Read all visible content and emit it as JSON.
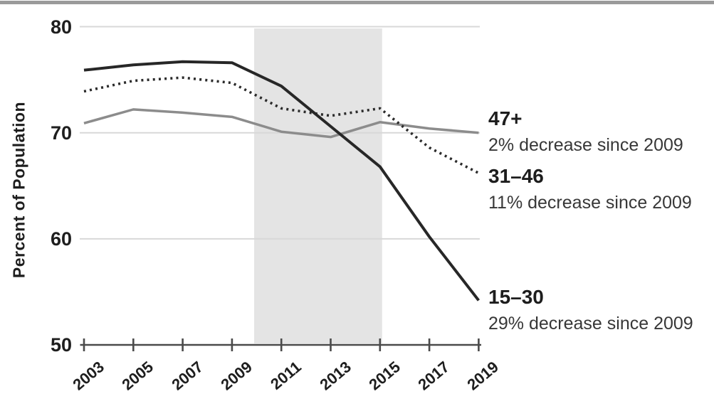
{
  "chart_data": {
    "type": "line",
    "ylabel": "Percent of Population",
    "xlim": [
      2003,
      2019
    ],
    "ylim": [
      50,
      80
    ],
    "x": [
      2003,
      2005,
      2007,
      2009,
      2011,
      2013,
      2015,
      2017,
      2019
    ],
    "x_tick_labels": [
      "2003",
      "2005",
      "2007",
      "2009",
      "2011",
      "2013",
      "2015",
      "2017",
      "2019"
    ],
    "y_ticks": [
      80,
      70,
      60,
      50
    ],
    "grid": "horizontal gridlines at 60, 70, 80",
    "legend_position": "right-of-line annotations",
    "shaded_region": {
      "x_start": 2010,
      "x_end": 2015,
      "color": "#e4e4e4"
    },
    "series": [
      {
        "name": "15–30",
        "note": "29% decrease since 2009",
        "style": "solid",
        "color": "#272727",
        "values": [
          75.9,
          76.4,
          76.7,
          76.6,
          74.4,
          70.6,
          66.8,
          60.2,
          54.2
        ]
      },
      {
        "name": "31–46",
        "note": "11% decrease since 2009",
        "style": "dotted",
        "color": "#2b2b2b",
        "values": [
          73.9,
          74.9,
          75.2,
          74.7,
          72.3,
          71.6,
          72.3,
          68.6,
          66.2
        ]
      },
      {
        "name": "47+",
        "note": "2% decrease since 2009",
        "style": "solid",
        "color": "#8c8c8c",
        "values": [
          70.9,
          72.2,
          71.9,
          71.5,
          70.1,
          69.6,
          71.0,
          70.4,
          70.0
        ]
      }
    ]
  }
}
